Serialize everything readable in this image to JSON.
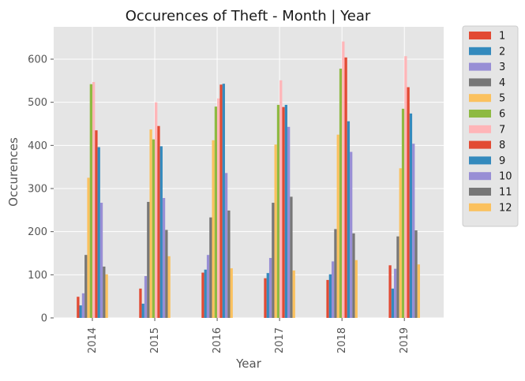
{
  "chart_data": {
    "type": "bar",
    "title": "Occurences of Theft - Month | Year",
    "xlabel": "Year",
    "ylabel": "Occurences",
    "categories": [
      "2014",
      "2015",
      "2016",
      "2017",
      "2018",
      "2019"
    ],
    "ylim": [
      0,
      675
    ],
    "yticks": [
      0,
      100,
      200,
      300,
      400,
      500,
      600
    ],
    "grid": true,
    "legend_position": "outside-right",
    "series": [
      {
        "name": "1",
        "color": "#e24a33",
        "values": [
          49,
          68,
          105,
          92,
          88,
          122
        ]
      },
      {
        "name": "2",
        "color": "#348abd",
        "values": [
          29,
          33,
          112,
          104,
          101,
          68
        ]
      },
      {
        "name": "3",
        "color": "#988ed5",
        "values": [
          57,
          97,
          146,
          139,
          131,
          114
        ]
      },
      {
        "name": "4",
        "color": "#777777",
        "values": [
          146,
          269,
          233,
          267,
          206,
          189
        ]
      },
      {
        "name": "5",
        "color": "#fbc15e",
        "values": [
          325,
          437,
          412,
          402,
          425,
          347
        ]
      },
      {
        "name": "6",
        "color": "#8eba42",
        "values": [
          542,
          414,
          490,
          494,
          578,
          485
        ]
      },
      {
        "name": "7",
        "color": "#ffb5b8",
        "values": [
          547,
          500,
          509,
          551,
          641,
          607
        ]
      },
      {
        "name": "8",
        "color": "#e24a33",
        "values": [
          435,
          445,
          541,
          489,
          604,
          535
        ]
      },
      {
        "name": "9",
        "color": "#348abd",
        "values": [
          396,
          398,
          543,
          494,
          456,
          474
        ]
      },
      {
        "name": "10",
        "color": "#988ed5",
        "values": [
          267,
          278,
          336,
          443,
          385,
          404
        ]
      },
      {
        "name": "11",
        "color": "#777777",
        "values": [
          119,
          204,
          249,
          281,
          196,
          203
        ]
      },
      {
        "name": "12",
        "color": "#fbc15e",
        "values": [
          101,
          143,
          115,
          110,
          134,
          124
        ]
      }
    ]
  }
}
